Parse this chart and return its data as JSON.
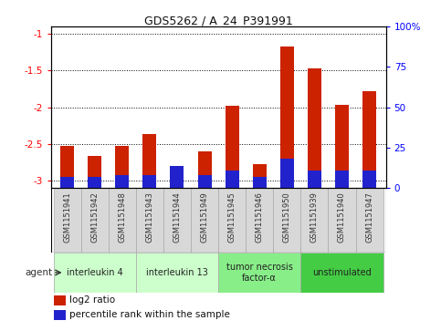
{
  "title": "GDS5262 / A_24_P391991",
  "samples": [
    "GSM1151941",
    "GSM1151942",
    "GSM1151948",
    "GSM1151943",
    "GSM1151944",
    "GSM1151949",
    "GSM1151945",
    "GSM1151946",
    "GSM1151950",
    "GSM1151939",
    "GSM1151940",
    "GSM1151947"
  ],
  "log2_ratio": [
    -2.52,
    -2.66,
    -2.52,
    -2.36,
    -3.02,
    -2.6,
    -1.98,
    -2.77,
    -1.17,
    -1.47,
    -1.97,
    -1.78
  ],
  "percentile_raw": [
    7,
    7,
    8,
    8,
    14,
    8,
    11,
    7,
    18,
    11,
    11,
    11
  ],
  "bar_color": "#cc2200",
  "pct_color": "#2222cc",
  "ylim_left": [
    -3.1,
    -0.9
  ],
  "ylim_right": [
    0,
    100
  ],
  "yticks_left": [
    -3.0,
    -2.5,
    -2.0,
    -1.5,
    -1.0
  ],
  "yticks_right": [
    0,
    25,
    50,
    75,
    100
  ],
  "ytick_labels_right": [
    "0",
    "25",
    "50",
    "75",
    "100%"
  ],
  "ytick_labels_left": [
    "-3",
    "-2.5",
    "-2",
    "-1.5",
    "-1"
  ],
  "agent_groups": [
    {
      "label": "interleukin 4",
      "indices": [
        0,
        1,
        2
      ],
      "color": "#ccffcc"
    },
    {
      "label": "interleukin 13",
      "indices": [
        3,
        4,
        5
      ],
      "color": "#ccffcc"
    },
    {
      "label": "tumor necrosis\nfactor-α",
      "indices": [
        6,
        7,
        8
      ],
      "color": "#88ee88"
    },
    {
      "label": "unstimulated",
      "indices": [
        9,
        10,
        11
      ],
      "color": "#44cc44"
    }
  ],
  "agent_label": "agent",
  "legend_red_label": "log2 ratio",
  "legend_blue_label": "percentile rank within the sample",
  "background_color": "#ffffff",
  "grid_color": "#000000",
  "bar_width": 0.5,
  "xlim": [
    -0.6,
    11.6
  ]
}
